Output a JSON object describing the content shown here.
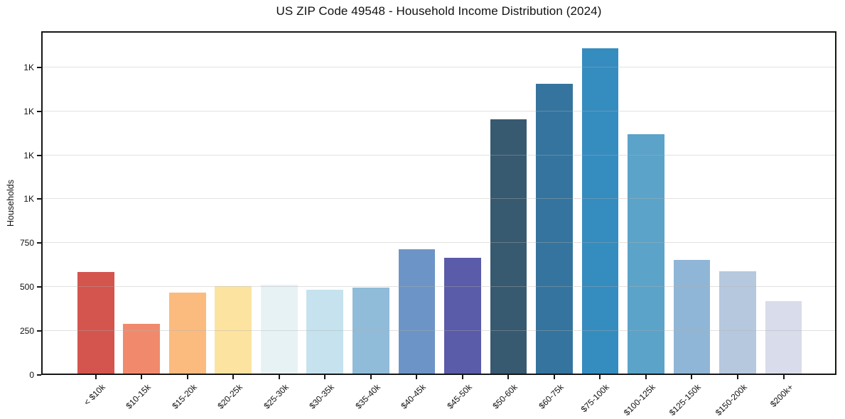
{
  "chart_data": {
    "type": "bar",
    "title": "US ZIP Code 49548 - Household Income Distribution (2024)",
    "xlabel": "",
    "ylabel": "Households",
    "categories": [
      "< $10k",
      "$10-15k",
      "$15-20k",
      "$20-25k",
      "$25-30k",
      "$30-35k",
      "$35-40k",
      "$40-45k",
      "$45-50k",
      "$50-60k",
      "$60-75k",
      "$75-100k",
      "$100-125k",
      "$125-150k",
      "$150-200k",
      "$200k+"
    ],
    "values": [
      585,
      290,
      470,
      505,
      515,
      485,
      495,
      715,
      665,
      1455,
      1655,
      1860,
      1370,
      655,
      590,
      420
    ],
    "bar_colors": [
      "#d4544e",
      "#f18a6c",
      "#fbbb7e",
      "#fde3a0",
      "#e7f2f5",
      "#c5e2ee",
      "#90bcda",
      "#6d94c6",
      "#5a5ba9",
      "#375a70",
      "#35749e",
      "#358cbf",
      "#5ba3c9",
      "#90b6d7",
      "#b5c8de",
      "#d9dcea"
    ],
    "ylim": [
      0,
      1955
    ],
    "yticks": [
      {
        "value": 0,
        "label": "0"
      },
      {
        "value": 250,
        "label": "250"
      },
      {
        "value": 500,
        "label": "500"
      },
      {
        "value": 750,
        "label": "750"
      },
      {
        "value": 1000,
        "label": "1K"
      },
      {
        "value": 1250,
        "label": "1K"
      },
      {
        "value": 1500,
        "label": "1K"
      },
      {
        "value": 1750,
        "label": "1K"
      }
    ],
    "grid": "horizontal",
    "legend": "none",
    "axis_color": "#161616",
    "gridline_color": "#b0b0b0",
    "background_color": "#ffffff"
  }
}
